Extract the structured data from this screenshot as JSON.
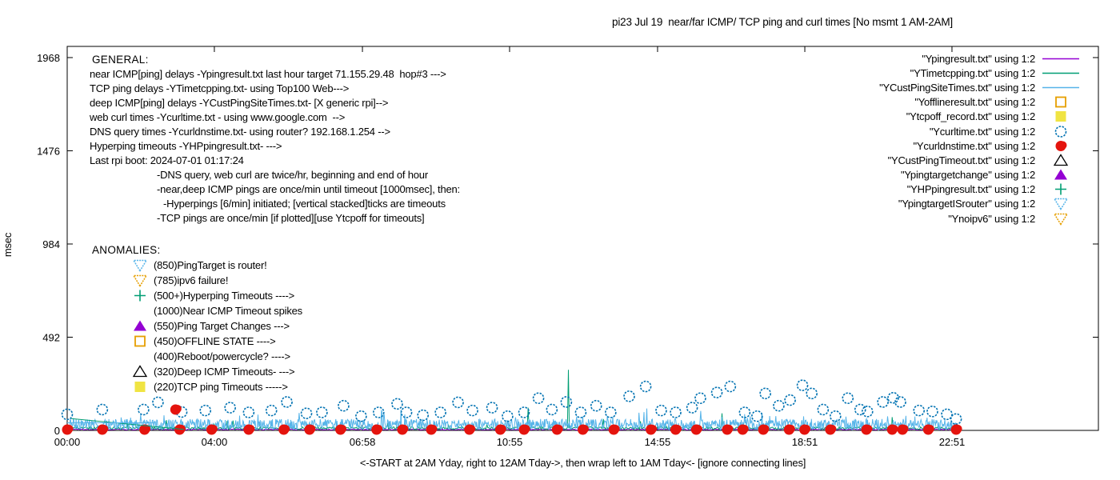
{
  "chart_data": {
    "type": "line",
    "title": "pi23 Jul 19  near/far ICMP/ TCP ping and curl times [No msmt 1 AM-2AM]",
    "xlabel": "<-START at 2AM Yday, right to 12AM Tday->, then wrap left to 1AM Tday<- [ignore connecting lines]",
    "ylabel": "msec",
    "ylim": [
      0,
      2027
    ],
    "grid": false,
    "legend_position": "top-right-inside",
    "yticks": [
      0,
      492,
      984,
      1476,
      1968
    ],
    "xticks": [
      {
        "pos": 0.0,
        "label": "00:00"
      },
      {
        "pos": 0.1427,
        "label": "04:00"
      },
      {
        "pos": 0.2863,
        "label": "06:58"
      },
      {
        "pos": 0.429,
        "label": "10:55"
      },
      {
        "pos": 0.5725,
        "label": "14:55"
      },
      {
        "pos": 0.7153,
        "label": "18:51"
      },
      {
        "pos": 0.858,
        "label": "22:51"
      }
    ],
    "data_xmax_frac": 0.863,
    "noise_seed": 20240719,
    "series": [
      {
        "name": "Ypingresult.txt",
        "legend": "\"Ypingresult.txt\" using 1:2",
        "style": "line",
        "color": "#9400d3",
        "gen": {
          "base": 2,
          "amp": 6,
          "n": 700
        }
      },
      {
        "name": "YTimetcpping.txt",
        "legend": "\"YTimetcpping.txt\" using 1:2",
        "style": "line",
        "color": "#009e73",
        "gen": {
          "base": 5,
          "amp": 14,
          "n": 950,
          "spike_p": 0.02,
          "spike_amp": 45
        },
        "spikes": [
          [
            0.155,
            50
          ],
          [
            0.447,
            120
          ],
          [
            0.486,
            320
          ],
          [
            0.52,
            60
          ],
          [
            0.635,
            90
          ],
          [
            0.8,
            70
          ]
        ]
      },
      {
        "name": "YCustPingSiteTimes.txt",
        "legend": "\"YCustPingSiteTimes.txt\" using 1:2",
        "style": "line",
        "color": "#56b4e9",
        "gen": {
          "base": 2,
          "amp": 58,
          "n": 1600,
          "spike_p": 0.05,
          "spike_amp": 70
        }
      },
      {
        "name": "Yofflineresult.txt",
        "legend": "\"Yofflineresult.txt\" using 1:2",
        "style": "square-open",
        "color": "#e69f00",
        "points": []
      },
      {
        "name": "Ytcpoff_record.txt",
        "legend": "\"Ytcpoff_record.txt\" using 1:2",
        "style": "square-filled",
        "color": "#f0e442",
        "points": []
      },
      {
        "name": "Ycurltime.txt",
        "legend": "\"Ycurltime.txt\" using 1:2",
        "style": "circle-open",
        "color": "#0072b2",
        "points": [
          [
            0.0,
            85
          ],
          [
            0.034,
            110
          ],
          [
            0.074,
            110
          ],
          [
            0.088,
            148
          ],
          [
            0.111,
            97
          ],
          [
            0.134,
            105
          ],
          [
            0.158,
            120
          ],
          [
            0.176,
            95
          ],
          [
            0.198,
            105
          ],
          [
            0.213,
            150
          ],
          [
            0.232,
            90
          ],
          [
            0.247,
            95
          ],
          [
            0.268,
            130
          ],
          [
            0.285,
            75
          ],
          [
            0.302,
            95
          ],
          [
            0.32,
            140
          ],
          [
            0.329,
            95
          ],
          [
            0.345,
            80
          ],
          [
            0.362,
            95
          ],
          [
            0.379,
            148
          ],
          [
            0.393,
            105
          ],
          [
            0.412,
            120
          ],
          [
            0.427,
            75
          ],
          [
            0.443,
            95
          ],
          [
            0.457,
            170
          ],
          [
            0.47,
            110
          ],
          [
            0.484,
            150
          ],
          [
            0.498,
            95
          ],
          [
            0.513,
            130
          ],
          [
            0.527,
            95
          ],
          [
            0.545,
            180
          ],
          [
            0.561,
            232
          ],
          [
            0.576,
            105
          ],
          [
            0.59,
            95
          ],
          [
            0.606,
            120
          ],
          [
            0.614,
            170
          ],
          [
            0.63,
            200
          ],
          [
            0.643,
            232
          ],
          [
            0.657,
            95
          ],
          [
            0.669,
            75
          ],
          [
            0.677,
            195
          ],
          [
            0.69,
            130
          ],
          [
            0.701,
            160
          ],
          [
            0.713,
            238
          ],
          [
            0.722,
            195
          ],
          [
            0.733,
            110
          ],
          [
            0.745,
            75
          ],
          [
            0.757,
            170
          ],
          [
            0.769,
            110
          ],
          [
            0.776,
            100
          ],
          [
            0.791,
            150
          ],
          [
            0.801,
            172
          ],
          [
            0.808,
            150
          ],
          [
            0.826,
            105
          ],
          [
            0.839,
            100
          ],
          [
            0.853,
            85
          ],
          [
            0.862,
            60
          ]
        ]
      },
      {
        "name": "Ycurldnstime.txt",
        "legend": "\"Ycurldnstime.txt\" using 1:2",
        "style": "circle-filled",
        "color": "#e4140e",
        "points": [
          [
            0.0,
            4
          ],
          [
            0.034,
            4
          ],
          [
            0.075,
            4
          ],
          [
            0.105,
            110
          ],
          [
            0.109,
            4
          ],
          [
            0.14,
            4
          ],
          [
            0.176,
            4
          ],
          [
            0.21,
            4
          ],
          [
            0.235,
            4
          ],
          [
            0.265,
            4
          ],
          [
            0.3,
            4
          ],
          [
            0.325,
            4
          ],
          [
            0.353,
            4
          ],
          [
            0.39,
            4
          ],
          [
            0.42,
            4
          ],
          [
            0.443,
            4
          ],
          [
            0.475,
            4
          ],
          [
            0.5,
            4
          ],
          [
            0.53,
            4
          ],
          [
            0.566,
            4
          ],
          [
            0.59,
            4
          ],
          [
            0.61,
            4
          ],
          [
            0.64,
            4
          ],
          [
            0.655,
            4
          ],
          [
            0.675,
            4
          ],
          [
            0.7,
            4
          ],
          [
            0.715,
            4
          ],
          [
            0.74,
            4
          ],
          [
            0.775,
            4
          ],
          [
            0.8,
            4
          ],
          [
            0.81,
            4
          ],
          [
            0.835,
            4
          ],
          [
            0.862,
            4
          ]
        ]
      },
      {
        "name": "YCustPingTimeout.txt",
        "legend": "\"YCustPingTimeout.txt\" using 1:2",
        "style": "triangle-open",
        "color": "#000000",
        "points": []
      },
      {
        "name": "Ypingtargetchange",
        "legend": "\"Ypingtargetchange\" using 1:2",
        "style": "triangle-filled",
        "color": "#9400d3",
        "points": []
      },
      {
        "name": "YHPpingresult.txt",
        "legend": "\"YHPpingresult.txt\" using 1:2",
        "style": "plus",
        "color": "#009e73",
        "points": []
      },
      {
        "name": "YpingtargetISrouter",
        "legend": "\"YpingtargetISrouter\" using 1:2",
        "style": "triangle-down-open",
        "color": "#56b4e9",
        "points": []
      },
      {
        "name": "Ynoipv6",
        "legend": "\"Ynoipv6\" using 1:2",
        "style": "triangle-down-open",
        "color": "#e69f00",
        "points": []
      }
    ],
    "artifact_lines": [
      {
        "color": "#009e73",
        "pts": [
          [
            0.004,
            62
          ],
          [
            0.113,
            5
          ]
        ]
      },
      {
        "color": "#56b4e9",
        "pts": [
          [
            0.0,
            40
          ],
          [
            0.086,
            40
          ]
        ]
      }
    ],
    "annotations": {
      "general": {
        "heading": "GENERAL:",
        "lines": [
          {
            "indent": 0,
            "text": "near ICMP[ping] delays -Ypingresult.txt last hour target 71.155.29.48  hop#3 --->"
          },
          {
            "indent": 0,
            "text": "TCP ping delays -YTimetcpping.txt- using Top100 Web--->"
          },
          {
            "indent": 0,
            "text": "deep ICMP[ping] delays -YCustPingSiteTimes.txt- [X generic rpi]-->"
          },
          {
            "indent": 0,
            "text": "web curl times -Ycurltime.txt - using www.google.com  -->"
          },
          {
            "indent": 0,
            "text": "DNS query times -Ycurldnstime.txt- using router? 192.168.1.254 -->"
          },
          {
            "indent": 0,
            "text": "Hyperping timeouts -YHPpingresult.txt- --->"
          },
          {
            "indent": 0,
            "text": "Last rpi boot: 2024-07-01 01:17:24"
          },
          {
            "indent": 1,
            "text": "-DNS query, web curl are twice/hr, beginning and end of hour"
          },
          {
            "indent": 1,
            "text": "-near,deep ICMP pings are once/min until timeout [1000msec], then:"
          },
          {
            "indent": 2,
            "text": "-Hyperpings [6/min] initiated; [vertical stacked]ticks are timeouts"
          },
          {
            "indent": 1,
            "text": "-TCP pings are once/min [if plotted][use Ytcpoff for timeouts]"
          }
        ]
      },
      "anomalies": {
        "heading": "ANOMALIES:",
        "items": [
          {
            "marker": "triangle-down-open",
            "color": "#56b4e9",
            "text": "(850)PingTarget is router!"
          },
          {
            "marker": "triangle-down-open",
            "color": "#e69f00",
            "text": "(785)ipv6 failure!"
          },
          {
            "marker": "plus",
            "color": "#009e73",
            "text": "(500+)Hyperping Timeouts ---->"
          },
          {
            "marker": "none",
            "color": "",
            "text": "(1000)Near ICMP Timeout spikes"
          },
          {
            "marker": "triangle-filled",
            "color": "#9400d3",
            "text": "(550)Ping Target Changes --->"
          },
          {
            "marker": "square-open",
            "color": "#e69f00",
            "text": "(450)OFFLINE STATE ---->"
          },
          {
            "marker": "none",
            "color": "",
            "text": "(400)Reboot/powercycle? ---->"
          },
          {
            "marker": "triangle-open",
            "color": "#000000",
            "text": "(320)Deep ICMP Timeouts- --->"
          },
          {
            "marker": "square-filled",
            "color": "#f0e442",
            "text": "(220)TCP ping Timeouts ----->"
          }
        ]
      }
    }
  }
}
